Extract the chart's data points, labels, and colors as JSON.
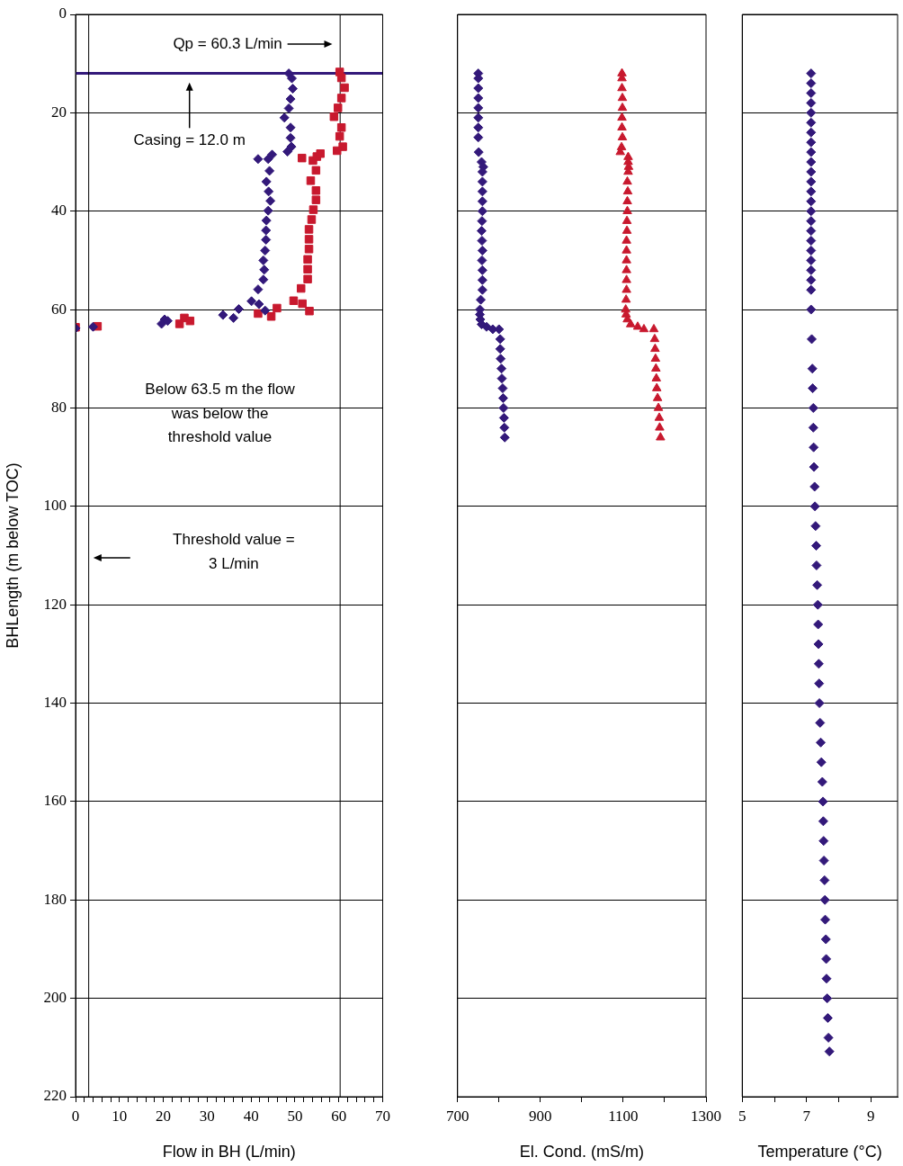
{
  "chart_data": [
    {
      "type": "scatter",
      "xlabel": "Flow in BH (L/min)",
      "ylabel": "BHLength (m below TOC)",
      "xlim": [
        0,
        70
      ],
      "ylim": [
        220,
        0
      ],
      "xticks": [
        0,
        {
          "value": 2,
          "label": null
        },
        {
          "value": 4,
          "label": null
        },
        {
          "value": 6,
          "label": null
        },
        {
          "value": 8,
          "label": null
        },
        10,
        {
          "value": 12,
          "label": null
        },
        {
          "value": 14,
          "label": null
        },
        {
          "value": 16,
          "label": null
        },
        {
          "value": 18,
          "label": null
        },
        20,
        {
          "value": 22,
          "label": null
        },
        {
          "value": 24,
          "label": null
        },
        {
          "value": 26,
          "label": null
        },
        {
          "value": 28,
          "label": null
        },
        30,
        {
          "value": 32,
          "label": null
        },
        {
          "value": 34,
          "label": null
        },
        {
          "value": 36,
          "label": null
        },
        {
          "value": 38,
          "label": null
        },
        40,
        {
          "value": 42,
          "label": null
        },
        {
          "value": 44,
          "label": null
        },
        {
          "value": 46,
          "label": null
        },
        {
          "value": 48,
          "label": null
        },
        50,
        {
          "value": 52,
          "label": null
        },
        {
          "value": 54,
          "label": null
        },
        {
          "value": 56,
          "label": null
        },
        {
          "value": 58,
          "label": null
        },
        60,
        {
          "value": 62,
          "label": null
        },
        {
          "value": 64,
          "label": null
        },
        {
          "value": 66,
          "label": null
        },
        {
          "value": 68,
          "label": null
        },
        70
      ],
      "yticks": [
        0,
        20,
        40,
        60,
        80,
        100,
        120,
        140,
        160,
        180,
        200,
        220
      ],
      "grid": "y",
      "legend": false,
      "series": [
        {
          "color": "#33197a",
          "marker": "diamond",
          "x": [
            48.6,
            49.3,
            49.5,
            49.0,
            48.6,
            47.6,
            49.0,
            49.0,
            49.2,
            48.3,
            41.6,
            43.9,
            44.8,
            44.2,
            43.5,
            44.0,
            44.4,
            43.9,
            43.5,
            43.4,
            43.4,
            43.2,
            42.8,
            43.0,
            42.8,
            41.6,
            40.1,
            41.8,
            43.2,
            37.2,
            36.0,
            33.6,
            20.3,
            19.6,
            21.0,
            4.0,
            0
          ],
          "values": [
            12,
            13.0,
            15.1,
            17.2,
            19.1,
            21.0,
            23.0,
            25.1,
            26.9,
            27.9,
            29.4,
            29.4,
            28.5,
            31.8,
            34.0,
            36.0,
            37.9,
            39.9,
            41.9,
            43.9,
            45.8,
            48.0,
            50.0,
            51.9,
            53.9,
            55.9,
            58.3,
            58.9,
            60.2,
            59.9,
            61.7,
            61.1,
            62.0,
            62.9,
            62.3,
            63.5,
            63.8
          ]
        },
        {
          "color": "#c8192e",
          "marker": "square",
          "x": [
            60.2,
            60.6,
            61.3,
            60.6,
            59.8,
            58.9,
            60.6,
            60.2,
            60.9,
            59.6,
            51.6,
            54.1,
            55.0,
            55.8,
            54.8,
            53.6,
            54.8,
            54.8,
            54.2,
            53.8,
            53.2,
            53.2,
            53.2,
            52.9,
            52.9,
            52.9,
            51.4,
            49.7,
            51.7,
            53.3,
            45.9,
            44.6,
            41.6,
            24.8,
            26.1,
            23.7,
            5.0,
            0
          ],
          "values": [
            11.7,
            12.9,
            14.9,
            17.0,
            19.0,
            20.8,
            23.0,
            24.8,
            26.9,
            27.7,
            29.2,
            29.7,
            28.9,
            28.3,
            31.7,
            33.8,
            35.8,
            37.7,
            39.7,
            41.7,
            43.7,
            45.7,
            47.7,
            49.8,
            51.8,
            53.8,
            55.7,
            58.2,
            58.8,
            60.3,
            59.7,
            61.4,
            60.8,
            61.7,
            62.3,
            62.9,
            63.4,
            63.6
          ]
        }
      ],
      "ref_lines": [
        {
          "axis": "y",
          "value": 12,
          "color": "#33197a"
        },
        {
          "axis": "x",
          "value": 3,
          "color": "#000000"
        },
        {
          "axis": "x",
          "value": 60.3,
          "color": "#000000"
        }
      ],
      "annotations": [
        "Qp = 60.3 L/min",
        "Casing = 12.0 m",
        "Below 63.5 m the flow was below the threshold value",
        "Threshold value = 3 L/min"
      ]
    },
    {
      "type": "scatter",
      "xlabel": "El. Cond. (mS/m)",
      "xlim": [
        700,
        1300
      ],
      "ylim": [
        220,
        0
      ],
      "xticks": [
        700,
        {
          "value": 800,
          "label": null
        },
        900,
        {
          "value": 1000,
          "label": null
        },
        1100,
        {
          "value": 1200,
          "label": null
        },
        1300
      ],
      "yticks": [
        0,
        20,
        40,
        60,
        80,
        100,
        120,
        140,
        160,
        180,
        200,
        220
      ],
      "grid": "y",
      "legend": false,
      "tick_labels": "x",
      "series": [
        {
          "color": "#33197a",
          "marker": "diamond",
          "x": [
            750,
            750,
            750,
            750,
            750,
            750,
            750,
            750,
            751,
            758,
            762,
            760,
            760,
            760,
            760,
            760,
            759,
            758,
            759,
            760,
            759,
            760,
            760,
            760,
            756,
            754,
            754,
            755,
            758,
            770,
            785,
            800,
            803,
            803,
            804,
            806,
            807,
            809,
            810,
            811,
            812,
            813,
            814
          ],
          "values": [
            12,
            13,
            15,
            17,
            19,
            21,
            23,
            25,
            28,
            30,
            31,
            32,
            34,
            36,
            38,
            40,
            42,
            44,
            46,
            48,
            50,
            52,
            54,
            56,
            58,
            60,
            61,
            62,
            63,
            63.5,
            64,
            64,
            66,
            68,
            70,
            72,
            74,
            76,
            78,
            80,
            82,
            84,
            86
          ]
        },
        {
          "color": "#c8192e",
          "marker": "triangle",
          "x": [
            1097,
            1097,
            1097,
            1098,
            1098,
            1097,
            1097,
            1098,
            1096,
            1093,
            1112,
            1112,
            1113,
            1112,
            1110,
            1111,
            1110,
            1110,
            1109,
            1109,
            1108,
            1108,
            1108,
            1108,
            1108,
            1108,
            1107,
            1106,
            1107,
            1110,
            1118,
            1135,
            1150,
            1174,
            1176,
            1177,
            1178,
            1179,
            1180,
            1181,
            1183,
            1185,
            1187,
            1188,
            1190
          ],
          "values": [
            12,
            13,
            15,
            17,
            19,
            21,
            23,
            25,
            27,
            28,
            29,
            30,
            31,
            32,
            34,
            36,
            38,
            40,
            42,
            44,
            46,
            48,
            50,
            52,
            54,
            56,
            58,
            60,
            61,
            62,
            63,
            63.5,
            64,
            64,
            66,
            68,
            70,
            72,
            74,
            76,
            78,
            80,
            82,
            84,
            86
          ]
        }
      ]
    },
    {
      "type": "scatter",
      "xlabel": "Temperature (°C)",
      "xlim": [
        5,
        9.83
      ],
      "ylim": [
        220,
        0
      ],
      "xticks": [
        5,
        {
          "value": 6,
          "label": null
        },
        7,
        {
          "value": 8,
          "label": null
        },
        9
      ],
      "yticks": [
        0,
        20,
        40,
        60,
        80,
        100,
        120,
        140,
        160,
        180,
        200,
        220
      ],
      "grid": "y",
      "legend": false,
      "tick_labels": "x",
      "series": [
        {
          "color": "#33197a",
          "marker": "diamond",
          "x": [
            7.14,
            7.14,
            7.14,
            7.14,
            7.14,
            7.14,
            7.14,
            7.14,
            7.14,
            7.14,
            7.14,
            7.14,
            7.14,
            7.14,
            7.14,
            7.14,
            7.14,
            7.14,
            7.14,
            7.14,
            7.14,
            7.14,
            7.14,
            7.14,
            7.16,
            7.18,
            7.19,
            7.21,
            7.21,
            7.22,
            7.23,
            7.25,
            7.26,
            7.28,
            7.3,
            7.31,
            7.33,
            7.35,
            7.36,
            7.37,
            7.38,
            7.39,
            7.4,
            7.42,
            7.44,
            7.46,
            7.49,
            7.51,
            7.52,
            7.53,
            7.54,
            7.56,
            7.57,
            7.58,
            7.6,
            7.61,
            7.62,
            7.64,
            7.66,
            7.68,
            7.71
          ],
          "values": [
            12,
            14,
            16,
            18,
            20,
            22,
            24,
            26,
            28,
            30,
            32,
            34,
            36,
            38,
            40,
            42,
            44,
            46,
            48,
            50,
            52,
            54,
            56,
            60,
            66,
            72,
            76,
            80,
            84,
            88,
            92,
            96,
            100,
            104,
            108,
            112,
            116,
            120,
            124,
            128,
            132,
            136,
            140,
            144,
            148,
            152,
            156,
            160,
            164,
            168,
            172,
            176,
            180,
            184,
            188,
            192,
            196,
            200,
            204,
            208,
            210.8
          ]
        }
      ]
    }
  ]
}
